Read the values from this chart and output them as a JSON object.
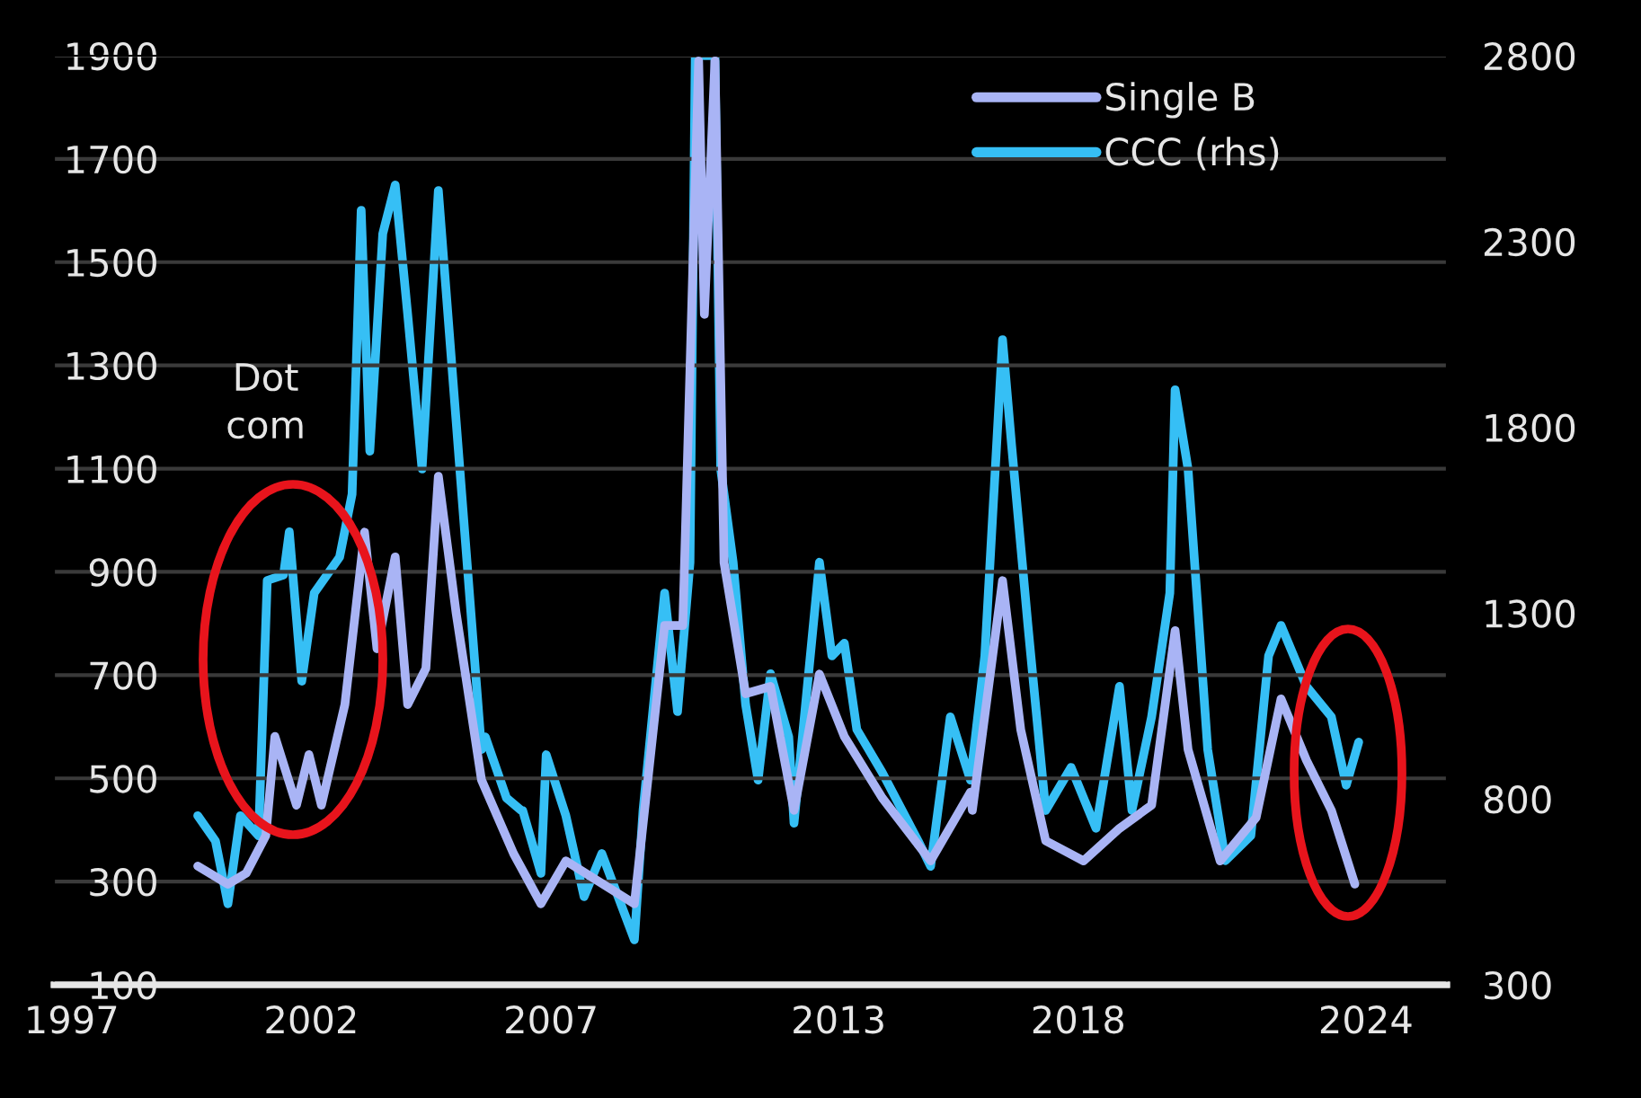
{
  "chart_data": {
    "type": "line",
    "xlim": [
      1996.63,
      2025.69
    ],
    "xticks": [
      1997,
      2002,
      2007,
      2013,
      2018,
      2024
    ],
    "ylim": [
      100,
      1900
    ],
    "yticks": [
      100,
      300,
      500,
      700,
      900,
      1100,
      1300,
      1500,
      1700,
      1900
    ],
    "y2lim": [
      300,
      2800
    ],
    "y2ticks": [
      300,
      800,
      1300,
      1800,
      2300,
      2800
    ],
    "grid": "y",
    "legend": "top right",
    "marker": "none",
    "line_style": "solid",
    "annotations": [
      "Dot\ncom"
    ],
    "series": [
      {
        "name": "Single B",
        "color": "#a9b4f5",
        "x": [
          1999.63,
          2000.26,
          2000.64,
          2001.05,
          2001.24,
          2001.69,
          2001.95,
          2002.21,
          2002.7,
          2003.11,
          2003.37,
          2003.75,
          2004.01,
          2004.39,
          2004.65,
          2005.02,
          2005.55,
          2006.22,
          2006.79,
          2007.31,
          2008.74,
          2009.37,
          2009.75,
          2010.08,
          2010.2,
          2010.42,
          2010.61,
          2011.06,
          2011.58,
          2012.07,
          2012.6,
          2013.12,
          2013.91,
          2014.92,
          2015.75,
          2015.79,
          2016.42,
          2016.8,
          2017.32,
          2018.11,
          2018.86,
          2019.53,
          2020.02,
          2020.29,
          2020.96,
          2021.71,
          2022.23,
          2022.76,
          2023.28,
          2023.77
        ],
        "values": [
          330,
          295,
          316,
          389,
          581,
          448,
          546,
          448,
          643,
          977,
          751,
          929,
          643,
          713,
          1085,
          821,
          497,
          354,
          257,
          340,
          257,
          796,
          796,
          1890,
          1399,
          1890,
          918,
          664,
          678,
          438,
          702,
          581,
          462,
          340,
          473,
          438,
          883,
          594,
          379,
          340,
          403,
          448,
          786,
          556,
          340,
          424,
          654,
          535,
          438,
          295
        ]
      },
      {
        "name": "CCC (rhs)",
        "color": "#36bff5",
        "axis": "y2",
        "x": [
          1999.63,
          2000.0,
          2000.26,
          2000.52,
          2000.9,
          2001.08,
          2001.42,
          2001.54,
          2001.8,
          2002.06,
          2002.59,
          2002.85,
          2003.04,
          2003.22,
          2003.49,
          2003.75,
          2004.01,
          2004.31,
          2004.65,
          2005.02,
          2005.55,
          2005.63,
          2006.07,
          2006.38,
          2006.41,
          2006.79,
          2006.9,
          2007.31,
          2007.69,
          2008.06,
          2008.74,
          2008.92,
          2009.37,
          2009.64,
          2009.9,
          2010.01,
          2010.42,
          2010.54,
          2010.8,
          2011.06,
          2011.32,
          2011.58,
          2011.96,
          2012.07,
          2012.6,
          2012.86,
          2013.12,
          2013.38,
          2013.91,
          2014.66,
          2014.92,
          2015.33,
          2015.75,
          2016.05,
          2016.42,
          2016.61,
          2016.95,
          2017.32,
          2017.85,
          2018.37,
          2018.86,
          2019.12,
          2019.53,
          2019.91,
          2020.02,
          2020.29,
          2020.7,
          2021.07,
          2021.6,
          2021.97,
          2022.23,
          2022.76,
          2023.28,
          2023.59,
          2023.85
        ],
        "values": [
          755,
          687,
          518,
          755,
          701,
          1388,
          1403,
          1519,
          1117,
          1354,
          1451,
          1620,
          2384,
          1736,
          2321,
          2452,
          2104,
          1688,
          2437,
          1818,
          933,
          967,
          803,
          769,
          769,
          600,
          919,
          755,
          537,
          653,
          421,
          769,
          1354,
          1035,
          1437,
          2800,
          2800,
          1688,
          1437,
          1054,
          851,
          1137,
          967,
          735,
          1437,
          1185,
          1219,
          987,
          871,
          687,
          619,
          1021,
          851,
          1185,
          2036,
          1751,
          1267,
          769,
          885,
          721,
          1103,
          769,
          1021,
          1354,
          1901,
          1688,
          933,
          634,
          701,
          1185,
          1267,
          1103,
          1021,
          837,
          953
        ]
      }
    ]
  }
}
